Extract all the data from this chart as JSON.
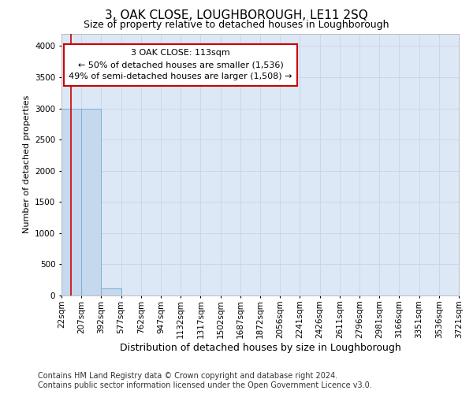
{
  "title": "3, OAK CLOSE, LOUGHBOROUGH, LE11 2SQ",
  "subtitle": "Size of property relative to detached houses in Loughborough",
  "xlabel": "Distribution of detached houses by size in Loughborough",
  "ylabel": "Number of detached properties",
  "footer_line1": "Contains HM Land Registry data © Crown copyright and database right 2024.",
  "footer_line2": "Contains public sector information licensed under the Open Government Licence v3.0.",
  "bin_edges": [
    22,
    207,
    392,
    577,
    762,
    947,
    1132,
    1317,
    1502,
    1687,
    1872,
    2056,
    2241,
    2426,
    2611,
    2796,
    2981,
    3166,
    3351,
    3536,
    3721
  ],
  "bar_heights": [
    3000,
    3000,
    120,
    0,
    0,
    0,
    0,
    0,
    0,
    0,
    0,
    0,
    0,
    0,
    0,
    0,
    0,
    0,
    0,
    0
  ],
  "bar_color": "#c5d8ee",
  "bar_edgecolor": "#7aafd4",
  "property_value": 113,
  "property_label": "3 OAK CLOSE: 113sqm",
  "annotation_line1": "← 50% of detached houses are smaller (1,536)",
  "annotation_line2": "49% of semi-detached houses are larger (1,508) →",
  "annotation_box_color": "#ffffff",
  "annotation_box_edgecolor": "#cc0000",
  "vline_color": "#cc0000",
  "ylim": [
    0,
    4200
  ],
  "yticks": [
    0,
    500,
    1000,
    1500,
    2000,
    2500,
    3000,
    3500,
    4000
  ],
  "grid_color": "#ccd6e8",
  "background_color": "#dce8f5",
  "title_fontsize": 11,
  "subtitle_fontsize": 9,
  "xlabel_fontsize": 9,
  "ylabel_fontsize": 8,
  "tick_fontsize": 7.5,
  "annotation_fontsize": 8,
  "footer_fontsize": 7
}
